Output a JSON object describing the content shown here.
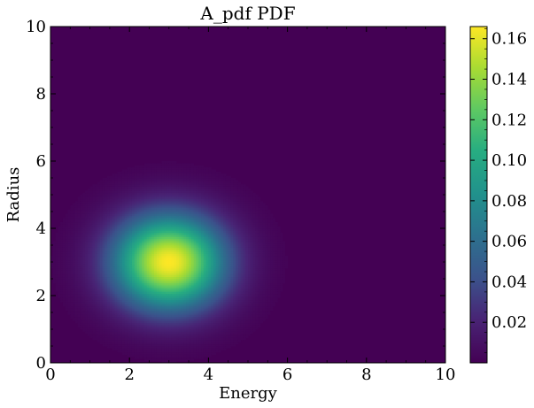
{
  "chart_data": {
    "type": "heatmap",
    "title": "A_pdf PDF",
    "xlabel": "Energy",
    "ylabel": "Radius",
    "xlim": [
      0,
      10
    ],
    "ylim": [
      0,
      10
    ],
    "x_ticks": [
      0,
      2,
      4,
      6,
      8,
      10
    ],
    "y_ticks": [
      0,
      2,
      4,
      6,
      8,
      10
    ],
    "x_tick_labels": [
      "0",
      "2",
      "4",
      "6",
      "8",
      "10"
    ],
    "y_tick_labels": [
      "0",
      "2",
      "4",
      "6",
      "8",
      "10"
    ],
    "distribution": {
      "kind": "gaussian-2d",
      "center": [
        3,
        3
      ],
      "sigma": [
        0.98,
        0.98
      ],
      "peak": 0.166
    },
    "colorbar": {
      "colormap": "viridis",
      "min": 0,
      "max": 0.166,
      "ticks": [
        0.02,
        0.04,
        0.06,
        0.08,
        0.1,
        0.12,
        0.14,
        0.16
      ],
      "tick_labels": [
        "0.02",
        "0.04",
        "0.06",
        "0.08",
        "0.10",
        "0.12",
        "0.14",
        "0.16"
      ]
    },
    "grid": false
  }
}
